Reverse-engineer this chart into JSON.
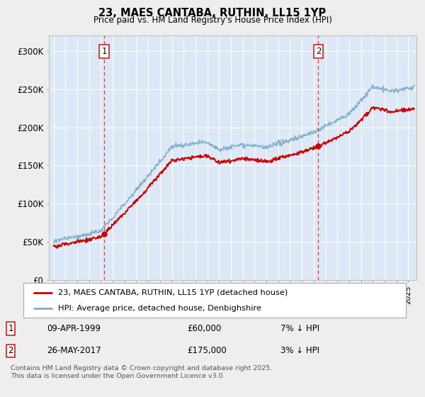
{
  "title": "23, MAES CANTABA, RUTHIN, LL15 1YP",
  "subtitle": "Price paid vs. HM Land Registry's House Price Index (HPI)",
  "ylim": [
    0,
    320000
  ],
  "yticks": [
    0,
    50000,
    100000,
    150000,
    200000,
    250000,
    300000
  ],
  "ytick_labels": [
    "£0",
    "£50K",
    "£100K",
    "£150K",
    "£200K",
    "£250K",
    "£300K"
  ],
  "legend_label_red": "23, MAES CANTABA, RUTHIN, LL15 1YP (detached house)",
  "legend_label_blue": "HPI: Average price, detached house, Denbighshire",
  "transaction1_date": "09-APR-1999",
  "transaction1_price": "£60,000",
  "transaction1_hpi": "7% ↓ HPI",
  "transaction2_date": "26-MAY-2017",
  "transaction2_price": "£175,000",
  "transaction2_hpi": "3% ↓ HPI",
  "footnote": "Contains HM Land Registry data © Crown copyright and database right 2025.\nThis data is licensed under the Open Government Licence v3.0.",
  "color_red": "#cc0000",
  "color_blue": "#7aaccc",
  "color_dashed": "#ee3333",
  "bg_color": "#eeeeee",
  "plot_bg": "#dce8f5",
  "grid_color": "#ffffff",
  "transaction1_x": 1999.27,
  "transaction2_x": 2017.4,
  "xmin": 1994.6,
  "xmax": 2025.7
}
